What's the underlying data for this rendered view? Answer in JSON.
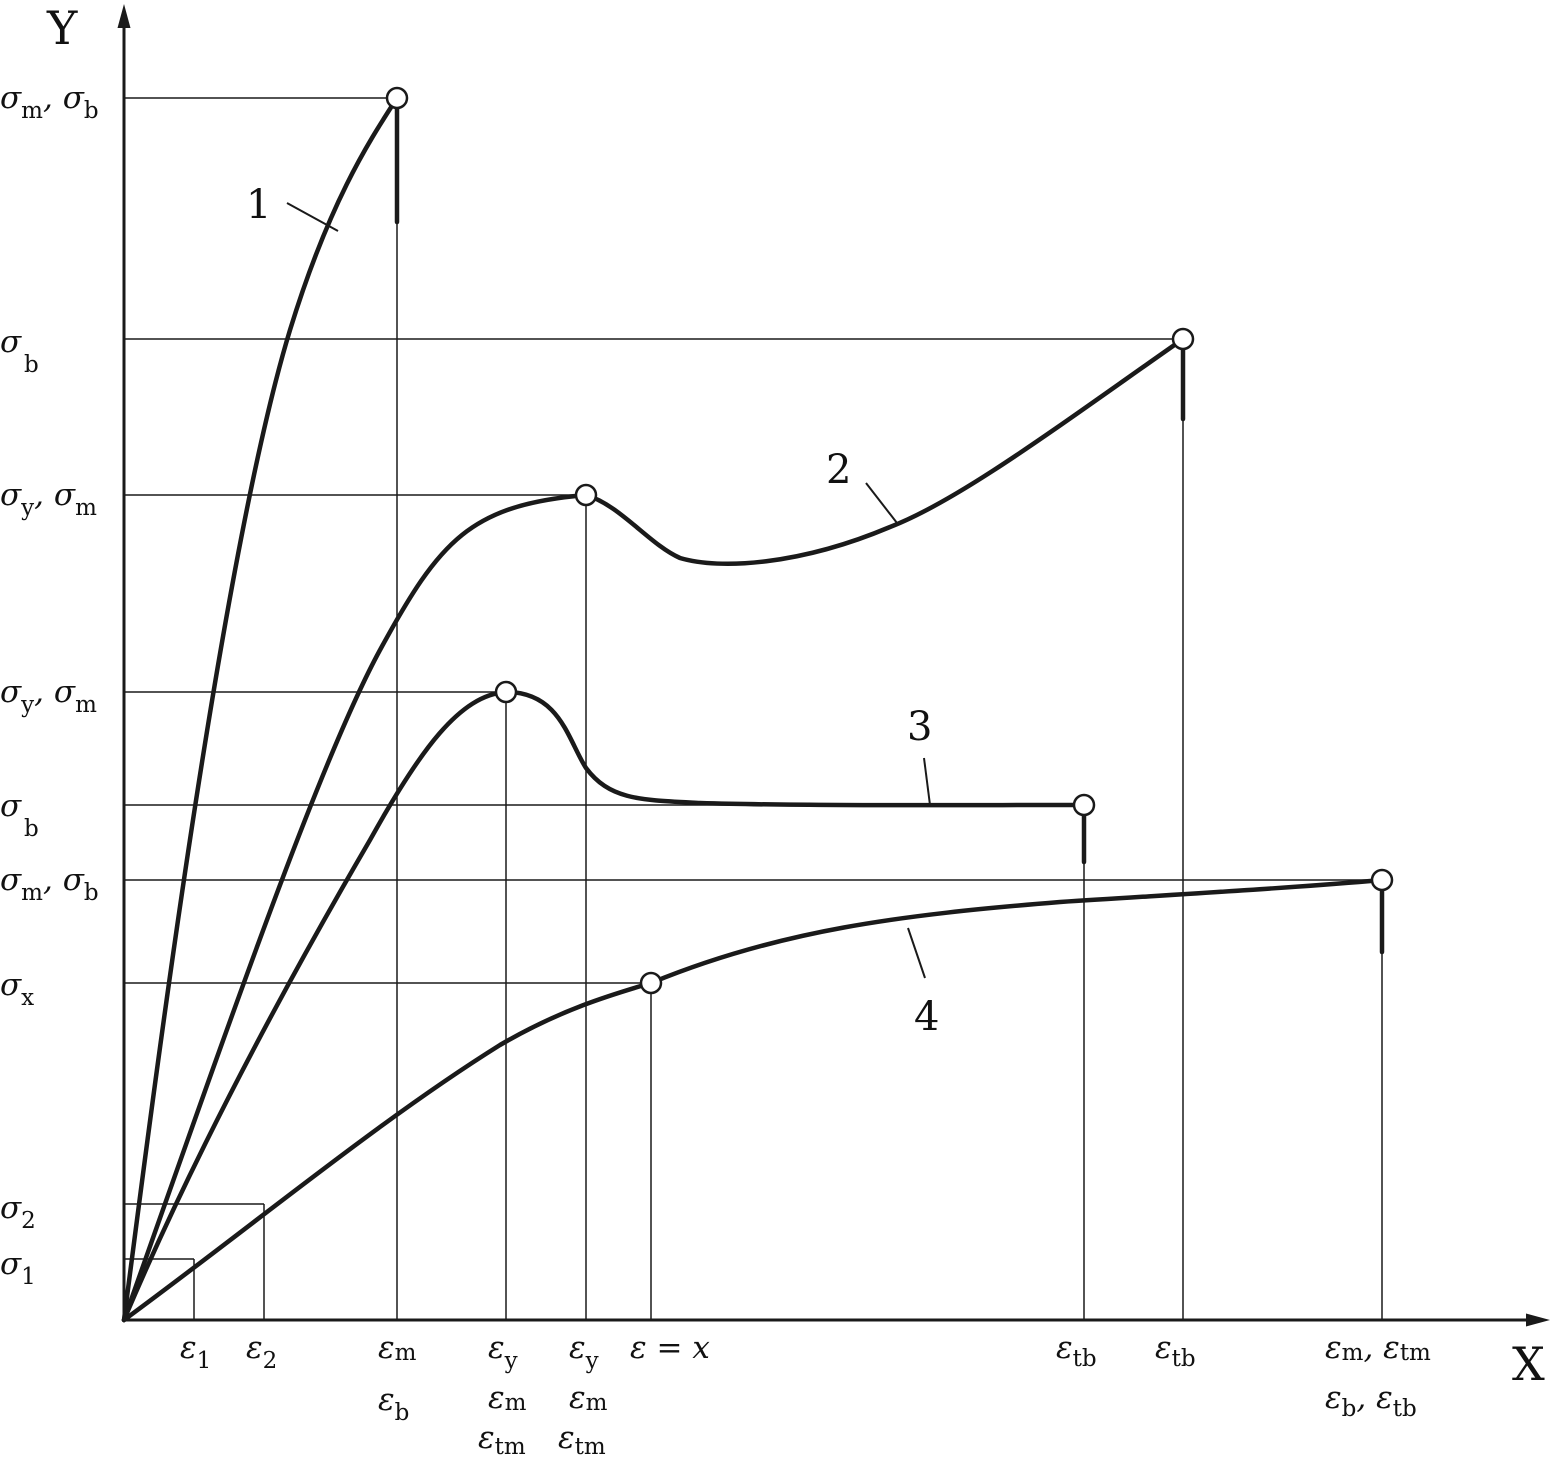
{
  "axes": {
    "y_name": "Y",
    "x_name": "X"
  },
  "y_labels": [
    {
      "a": "σ",
      "as": "m",
      "sep": ", ",
      "b": "σ",
      "bs": "b"
    },
    {
      "a": "σ",
      "as": "b",
      "sep": "",
      "b": "",
      "bs": ""
    },
    {
      "a": "σ",
      "as": "y",
      "sep": ", ",
      "b": "σ",
      "bs": "m"
    },
    {
      "a": "σ",
      "as": "y",
      "sep": ", ",
      "b": "σ",
      "bs": "m"
    },
    {
      "a": "σ",
      "as": "b",
      "sep": "",
      "b": "",
      "bs": ""
    },
    {
      "a": "σ",
      "as": "m",
      "sep": ", ",
      "b": "σ",
      "bs": "b"
    },
    {
      "a": "σ",
      "as": "x",
      "sep": "",
      "b": "",
      "bs": ""
    },
    {
      "a": "σ",
      "as": "2",
      "sep": "",
      "b": "",
      "bs": ""
    },
    {
      "a": "σ",
      "as": "1",
      "sep": "",
      "b": "",
      "bs": ""
    }
  ],
  "x_labels": [
    {
      "a": "ε",
      "as": "1",
      "sep": "",
      "b": "",
      "bs": ""
    },
    {
      "a": "ε",
      "as": "2",
      "sep": "",
      "b": "",
      "bs": ""
    },
    {
      "a": "ε",
      "as": "m",
      "sep": "",
      "b": "",
      "bs": ""
    },
    {
      "a": "ε",
      "as": "b",
      "sep": "",
      "b": "",
      "bs": ""
    },
    {
      "a": "ε",
      "as": "y",
      "sep": "",
      "b": "",
      "bs": ""
    },
    {
      "a": "ε",
      "as": "m",
      "sep": "",
      "b": "",
      "bs": ""
    },
    {
      "a": "ε",
      "as": "tm",
      "sep": "",
      "b": "",
      "bs": ""
    },
    {
      "a": "ε",
      "as": "y",
      "sep": "",
      "b": "",
      "bs": ""
    },
    {
      "a": "ε",
      "as": "m",
      "sep": "",
      "b": "",
      "bs": ""
    },
    {
      "a": "ε",
      "as": "tm",
      "sep": "",
      "b": "",
      "bs": ""
    },
    {
      "a": "ε = x",
      "as": "",
      "sep": "",
      "b": "",
      "bs": ""
    },
    {
      "a": "ε",
      "as": "tb",
      "sep": "",
      "b": "",
      "bs": ""
    },
    {
      "a": "ε",
      "as": "tb",
      "sep": "",
      "b": "",
      "bs": ""
    },
    {
      "a": "ε",
      "as": "m",
      "sep": ", ",
      "b": "ε",
      "bs": "tm"
    },
    {
      "a": "ε",
      "as": "b",
      "sep": ", ",
      "b": "ε",
      "bs": "tb"
    }
  ],
  "curve_labels": [
    "1",
    "2",
    "3",
    "4"
  ]
}
